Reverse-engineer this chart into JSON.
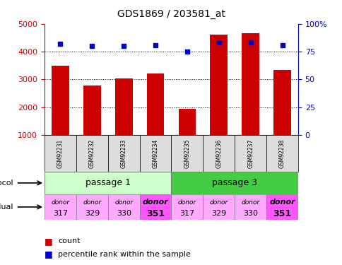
{
  "title": "GDS1869 / 203581_at",
  "samples": [
    "GSM92231",
    "GSM92232",
    "GSM92233",
    "GSM92234",
    "GSM92235",
    "GSM92236",
    "GSM92237",
    "GSM92238"
  ],
  "counts": [
    3480,
    2780,
    3030,
    3220,
    1950,
    4620,
    4650,
    3350
  ],
  "percentiles": [
    82,
    80,
    80,
    81,
    75,
    83,
    83,
    81
  ],
  "ylim_left": [
    1000,
    5000
  ],
  "ylim_right": [
    0,
    100
  ],
  "yticks_left": [
    1000,
    2000,
    3000,
    4000,
    5000
  ],
  "yticks_right": [
    0,
    25,
    50,
    75,
    100
  ],
  "bar_color": "#cc0000",
  "dot_color": "#0000cc",
  "growth_labels": [
    "passage 1",
    "passage 3"
  ],
  "growth_colors": [
    "#ccffcc",
    "#44cc44"
  ],
  "individuals": [
    [
      "donor",
      "317"
    ],
    [
      "donor",
      "329"
    ],
    [
      "donor",
      "330"
    ],
    [
      "donor",
      "351"
    ],
    [
      "donor",
      "317"
    ],
    [
      "donor",
      "329"
    ],
    [
      "donor",
      "330"
    ],
    [
      "donor",
      "351"
    ]
  ],
  "individual_colors": [
    "#ffaaff",
    "#ffaaff",
    "#ffaaff",
    "#ff55ff",
    "#ffaaff",
    "#ffaaff",
    "#ffaaff",
    "#ff55ff"
  ],
  "individual_bold": [
    false,
    false,
    false,
    true,
    false,
    false,
    false,
    true
  ],
  "legend_count_color": "#cc0000",
  "legend_pct_color": "#0000cc",
  "left_label_color": "#cc0000",
  "right_label_color": "#0000cc",
  "bar_bottom": 1000,
  "sample_box_color": "#dddddd",
  "grid_color": "black",
  "grid_lines": [
    2000,
    3000,
    4000
  ]
}
